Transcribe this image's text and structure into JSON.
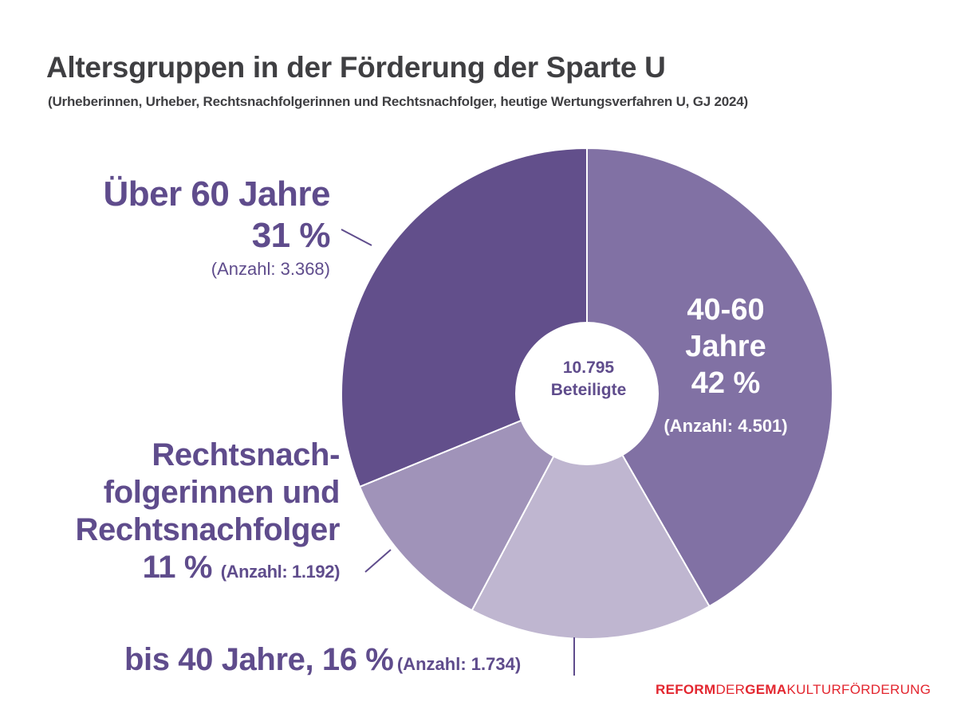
{
  "header": {
    "title": "Altersgruppen in der Förderung der Sparte U",
    "subtitle": "(Urheberinnen, Urheber, Rechtsnachfolgerinnen und Rechtsnachfolger, heutige Wertungsverfahren U, GJ 2024)"
  },
  "labels": {
    "over60": {
      "name": "Über 60 Jahre",
      "pct": "31 %",
      "count": "(Anzahl: 3.368)"
    },
    "age4060": {
      "name_line1": "40-60",
      "name_line2": "Jahre",
      "pct": "42 %",
      "count": "(Anzahl: 4.501)"
    },
    "successors": {
      "line1": "Rechtsnach-",
      "line2": "folgerinnen und",
      "line3": "Rechtsnachfolger",
      "pct": "11 %",
      "count": "(Anzahl: 1.192)"
    },
    "under40": {
      "name": "bis 40 Jahre, 16 %",
      "count": "(Anzahl: 1.734)"
    }
  },
  "center": {
    "total": "10.795",
    "label": "Beteiligte"
  },
  "brand": {
    "part1": "REFORM",
    "part2": "DER",
    "part3": "GEMA",
    "part4": "KULTURFÖRDERUNG"
  },
  "chart_data": {
    "type": "pie",
    "style": "donut",
    "title": "Altersgruppen in der Förderung der Sparte U",
    "subtitle": "(Urheberinnen, Urheber, Rechtsnachfolgerinnen und Rechtsnachfolger, heutige Wertungsverfahren U, GJ 2024)",
    "total": 10795,
    "total_label": "Beteiligte",
    "start": "12 o'clock",
    "direction": "clockwise",
    "slices": [
      {
        "name": "40-60 Jahre",
        "percent": 42,
        "count": 4501,
        "color": "#8171a4"
      },
      {
        "name": "bis 40 Jahre",
        "percent": 16,
        "count": 1734,
        "color": "#bfb6d0"
      },
      {
        "name": "Rechtsnachfolgerinnen und Rechtsnachfolger",
        "percent": 11,
        "count": 1192,
        "color": "#a093b9"
      },
      {
        "name": "Über 60 Jahre",
        "percent": 31,
        "count": 3368,
        "color": "#624f8b"
      }
    ]
  },
  "colors": {
    "label_text": "#5f4c8c",
    "title_text": "#3f3f42",
    "brand_red": "#e3262f",
    "brand_gray": "#3f3f42",
    "hole": "#ffffff"
  }
}
